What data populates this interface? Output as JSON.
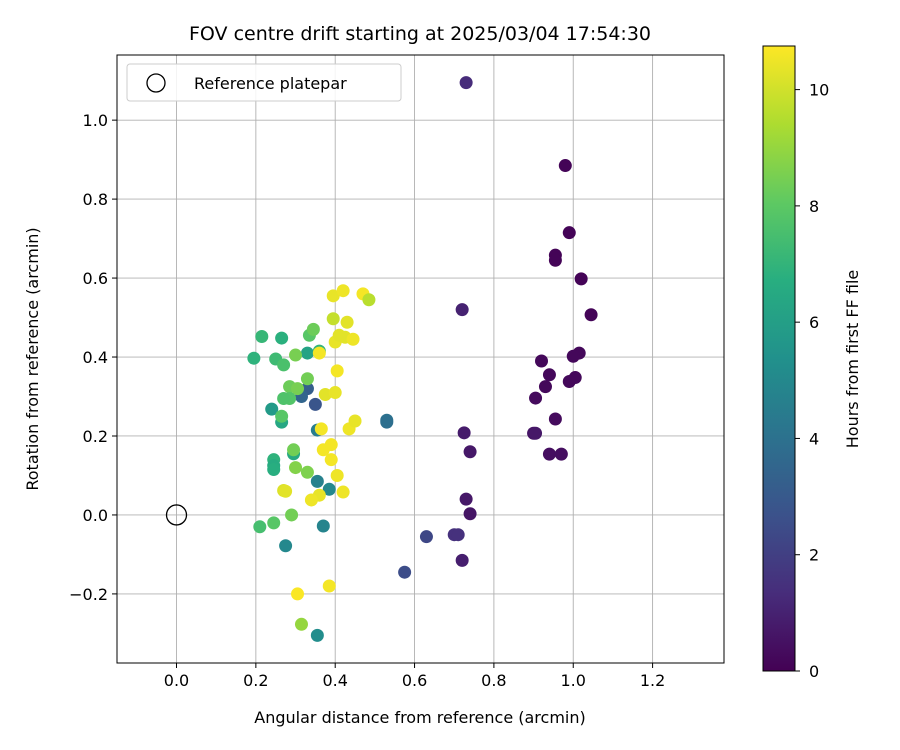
{
  "chart_data": {
    "type": "scatter",
    "title": "FOV centre drift starting at 2025/03/04 17:54:30",
    "xlabel": "Angular distance from reference (arcmin)",
    "ylabel": "Rotation from reference (arcmin)",
    "xlim": [
      -0.15,
      1.38
    ],
    "ylim": [
      -0.375,
      1.165
    ],
    "xticks": [
      0.0,
      0.2,
      0.4,
      0.6,
      0.8,
      1.0,
      1.2
    ],
    "xtick_labels": [
      "0.0",
      "0.2",
      "0.4",
      "0.6",
      "0.8",
      "1.0",
      "1.2"
    ],
    "yticks": [
      -0.2,
      0.0,
      0.2,
      0.4,
      0.6,
      0.8,
      1.0
    ],
    "ytick_labels": [
      "−0.2",
      "0.0",
      "0.2",
      "0.4",
      "0.6",
      "0.8",
      "1.0"
    ],
    "grid": true,
    "colormap": "viridis",
    "colorbar": {
      "label": "Hours from first FF file",
      "range": [
        0,
        10.75
      ],
      "ticks": [
        0,
        2,
        4,
        6,
        8,
        10
      ],
      "tick_labels": [
        "0",
        "2",
        "4",
        "6",
        "8",
        "10"
      ]
    },
    "legend": {
      "position": "upper-left",
      "entries": [
        {
          "label": "Reference platepar",
          "marker": "open-circle",
          "color": "#000000"
        }
      ]
    },
    "reference_point": {
      "x": 0.0,
      "y": 0.0
    },
    "points": [
      {
        "x": 0.73,
        "y": 1.095,
        "h": 1.3
      },
      {
        "x": 0.98,
        "y": 0.885,
        "h": 0.1
      },
      {
        "x": 0.99,
        "y": 0.715,
        "h": 0.1
      },
      {
        "x": 0.955,
        "y": 0.658,
        "h": 0.1
      },
      {
        "x": 0.955,
        "y": 0.645,
        "h": 0.1
      },
      {
        "x": 1.02,
        "y": 0.598,
        "h": 0.1
      },
      {
        "x": 1.045,
        "y": 0.507,
        "h": 0.1
      },
      {
        "x": 0.72,
        "y": 0.52,
        "h": 1.0
      },
      {
        "x": 1.015,
        "y": 0.41,
        "h": 0.2
      },
      {
        "x": 1.0,
        "y": 0.402,
        "h": 0.2
      },
      {
        "x": 0.92,
        "y": 0.39,
        "h": 0.2
      },
      {
        "x": 0.94,
        "y": 0.355,
        "h": 0.2
      },
      {
        "x": 1.005,
        "y": 0.348,
        "h": 0.2
      },
      {
        "x": 0.99,
        "y": 0.338,
        "h": 0.2
      },
      {
        "x": 0.93,
        "y": 0.325,
        "h": 0.2
      },
      {
        "x": 0.905,
        "y": 0.296,
        "h": 0.3
      },
      {
        "x": 0.955,
        "y": 0.243,
        "h": 0.3
      },
      {
        "x": 0.9,
        "y": 0.207,
        "h": 0.6
      },
      {
        "x": 0.905,
        "y": 0.207,
        "h": 0.7
      },
      {
        "x": 0.725,
        "y": 0.208,
        "h": 0.8
      },
      {
        "x": 0.74,
        "y": 0.16,
        "h": 0.7
      },
      {
        "x": 0.94,
        "y": 0.154,
        "h": 0.4
      },
      {
        "x": 0.97,
        "y": 0.154,
        "h": 0.4
      },
      {
        "x": 0.73,
        "y": 0.04,
        "h": 0.7
      },
      {
        "x": 0.74,
        "y": 0.003,
        "h": 0.6
      },
      {
        "x": 0.7,
        "y": -0.05,
        "h": 1.5
      },
      {
        "x": 0.71,
        "y": -0.05,
        "h": 1.5
      },
      {
        "x": 0.63,
        "y": -0.055,
        "h": 2.3
      },
      {
        "x": 0.72,
        "y": -0.115,
        "h": 0.9
      },
      {
        "x": 0.575,
        "y": -0.145,
        "h": 2.5
      },
      {
        "x": 0.53,
        "y": 0.24,
        "h": 4.0
      },
      {
        "x": 0.53,
        "y": 0.235,
        "h": 3.9
      },
      {
        "x": 0.35,
        "y": 0.28,
        "h": 2.8
      },
      {
        "x": 0.33,
        "y": 0.32,
        "h": 3.2
      },
      {
        "x": 0.315,
        "y": 0.3,
        "h": 3.5
      },
      {
        "x": 0.355,
        "y": 0.215,
        "h": 4.5
      },
      {
        "x": 0.355,
        "y": 0.085,
        "h": 4.7
      },
      {
        "x": 0.385,
        "y": 0.065,
        "h": 5.0
      },
      {
        "x": 0.37,
        "y": -0.028,
        "h": 4.8
      },
      {
        "x": 0.275,
        "y": -0.078,
        "h": 5.0
      },
      {
        "x": 0.355,
        "y": -0.305,
        "h": 5.2
      },
      {
        "x": 0.295,
        "y": 0.155,
        "h": 6.5
      },
      {
        "x": 0.24,
        "y": 0.268,
        "h": 5.8
      },
      {
        "x": 0.265,
        "y": 0.235,
        "h": 6.4
      },
      {
        "x": 0.245,
        "y": 0.14,
        "h": 6.9
      },
      {
        "x": 0.245,
        "y": 0.125,
        "h": 6.6
      },
      {
        "x": 0.245,
        "y": 0.115,
        "h": 6.7
      },
      {
        "x": 0.195,
        "y": 0.397,
        "h": 6.9
      },
      {
        "x": 0.215,
        "y": 0.452,
        "h": 7.1
      },
      {
        "x": 0.265,
        "y": 0.448,
        "h": 6.8
      },
      {
        "x": 0.25,
        "y": 0.395,
        "h": 7.3
      },
      {
        "x": 0.27,
        "y": 0.38,
        "h": 7.6
      },
      {
        "x": 0.33,
        "y": 0.41,
        "h": 6.2
      },
      {
        "x": 0.36,
        "y": 0.415,
        "h": 7.0
      },
      {
        "x": 0.335,
        "y": 0.455,
        "h": 7.9
      },
      {
        "x": 0.345,
        "y": 0.47,
        "h": 8.3
      },
      {
        "x": 0.3,
        "y": 0.405,
        "h": 8.5
      },
      {
        "x": 0.285,
        "y": 0.325,
        "h": 8.3
      },
      {
        "x": 0.305,
        "y": 0.32,
        "h": 8.5
      },
      {
        "x": 0.33,
        "y": 0.345,
        "h": 8.4
      },
      {
        "x": 0.285,
        "y": 0.295,
        "h": 7.8
      },
      {
        "x": 0.27,
        "y": 0.295,
        "h": 7.7
      },
      {
        "x": 0.265,
        "y": 0.25,
        "h": 7.9
      },
      {
        "x": 0.295,
        "y": 0.165,
        "h": 8.4
      },
      {
        "x": 0.3,
        "y": 0.12,
        "h": 8.7
      },
      {
        "x": 0.33,
        "y": 0.108,
        "h": 8.6
      },
      {
        "x": 0.29,
        "y": 0.0,
        "h": 8.4
      },
      {
        "x": 0.245,
        "y": -0.02,
        "h": 7.9
      },
      {
        "x": 0.21,
        "y": -0.03,
        "h": 7.5
      },
      {
        "x": 0.315,
        "y": -0.277,
        "h": 9.0
      },
      {
        "x": 0.27,
        "y": 0.062,
        "h": 10.2
      },
      {
        "x": 0.275,
        "y": 0.06,
        "h": 10.3
      },
      {
        "x": 0.36,
        "y": 0.05,
        "h": 10.4
      },
      {
        "x": 0.34,
        "y": 0.038,
        "h": 10.5
      },
      {
        "x": 0.42,
        "y": 0.058,
        "h": 10.5
      },
      {
        "x": 0.405,
        "y": 0.1,
        "h": 10.5
      },
      {
        "x": 0.39,
        "y": 0.14,
        "h": 10.6
      },
      {
        "x": 0.37,
        "y": 0.165,
        "h": 10.6
      },
      {
        "x": 0.39,
        "y": 0.178,
        "h": 10.6
      },
      {
        "x": 0.365,
        "y": 0.218,
        "h": 10.6
      },
      {
        "x": 0.435,
        "y": 0.218,
        "h": 10.5
      },
      {
        "x": 0.45,
        "y": 0.238,
        "h": 10.4
      },
      {
        "x": 0.375,
        "y": 0.305,
        "h": 10.3
      },
      {
        "x": 0.4,
        "y": 0.31,
        "h": 10.4
      },
      {
        "x": 0.405,
        "y": 0.365,
        "h": 10.6
      },
      {
        "x": 0.36,
        "y": 0.41,
        "h": 10.6
      },
      {
        "x": 0.4,
        "y": 0.438,
        "h": 10.4
      },
      {
        "x": 0.41,
        "y": 0.455,
        "h": 10.3
      },
      {
        "x": 0.425,
        "y": 0.45,
        "h": 10.3
      },
      {
        "x": 0.445,
        "y": 0.445,
        "h": 10.5
      },
      {
        "x": 0.395,
        "y": 0.497,
        "h": 9.8
      },
      {
        "x": 0.43,
        "y": 0.488,
        "h": 10.3
      },
      {
        "x": 0.395,
        "y": 0.555,
        "h": 10.4
      },
      {
        "x": 0.42,
        "y": 0.568,
        "h": 10.5
      },
      {
        "x": 0.47,
        "y": 0.56,
        "h": 10.6
      },
      {
        "x": 0.485,
        "y": 0.545,
        "h": 9.6
      },
      {
        "x": 0.385,
        "y": -0.18,
        "h": 10.6
      },
      {
        "x": 0.305,
        "y": -0.2,
        "h": 10.7
      }
    ]
  }
}
